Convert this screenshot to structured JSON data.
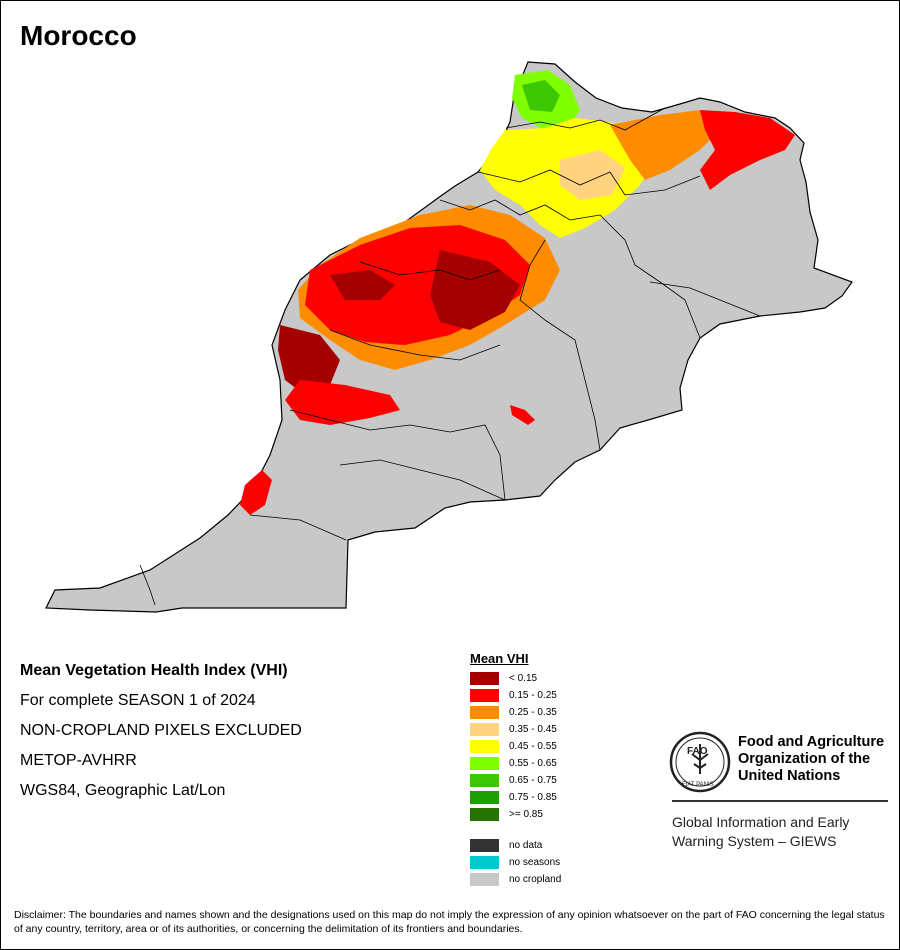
{
  "map": {
    "title": "Morocco",
    "info_lines": [
      "Mean Vegetation Health Index (VHI)",
      "For complete SEASON 1 of 2024",
      "NON-CROPLAND PIXELS EXCLUDED",
      "METOP-AVHRR",
      "WGS84, Geographic Lat/Lon"
    ]
  },
  "legend": {
    "title": "Mean VHI",
    "classes": [
      {
        "label": "< 0.15",
        "color": "#a50000"
      },
      {
        "label": "0.15 - 0.25",
        "color": "#ff0000"
      },
      {
        "label": "0.25 - 0.35",
        "color": "#ff8c00"
      },
      {
        "label": "0.35 - 0.45",
        "color": "#ffd37f"
      },
      {
        "label": "0.45 - 0.55",
        "color": "#ffff00"
      },
      {
        "label": "0.55 - 0.65",
        "color": "#7fff00"
      },
      {
        "label": "0.65 - 0.75",
        "color": "#3cc800"
      },
      {
        "label": "0.75 - 0.85",
        "color": "#19a000"
      },
      {
        "label": ">= 0.85",
        "color": "#267300"
      }
    ],
    "extra": [
      {
        "label": "no data",
        "color": "#333333"
      },
      {
        "label": "no seasons",
        "color": "#00c8d0"
      },
      {
        "label": "no cropland",
        "color": "#c8c8c8"
      }
    ]
  },
  "logo": {
    "org_lines": [
      "Food and Agriculture",
      "Organization of the",
      "United Nations"
    ],
    "emblem_text": "FAO",
    "motto": "FIAT PANIS",
    "system_lines": [
      "Global Information and Early",
      "Warning System – GIEWS"
    ]
  },
  "disclaimer": "Disclaimer: The boundaries and names shown and the designations used on this map do not imply the expression of any opinion whatsoever on the part of FAO concerning the legal status of any country, territory, area or of its authorities, or concerning the delimitation of its frontiers and boundaries."
}
